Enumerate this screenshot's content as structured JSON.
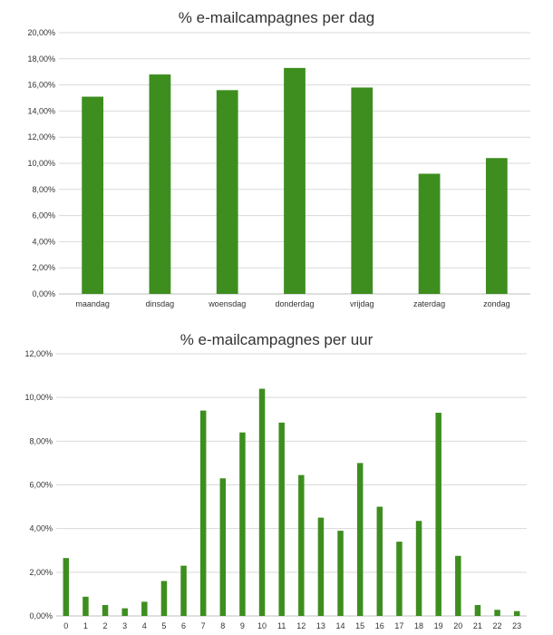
{
  "chart_data": [
    {
      "type": "bar",
      "title": "% e-mailcampagnes per dag",
      "xlabel": "",
      "ylabel": "",
      "categories": [
        "maandag",
        "dinsdag",
        "woensdag",
        "donderdag",
        "vrijdag",
        "zaterdag",
        "zondag"
      ],
      "values": [
        15.1,
        16.8,
        15.6,
        17.3,
        15.8,
        9.2,
        10.4
      ],
      "ylim": [
        0,
        20
      ],
      "yticks": [
        "0,00%",
        "2,00%",
        "4,00%",
        "6,00%",
        "8,00%",
        "10,00%",
        "12,00%",
        "14,00%",
        "16,00%",
        "18,00%",
        "20,00%"
      ],
      "grid": true,
      "legend": "none",
      "bar_color": "#3e8e1f"
    },
    {
      "type": "bar",
      "title": "% e-mailcampagnes per uur",
      "xlabel": "",
      "ylabel": "",
      "categories": [
        "0",
        "1",
        "2",
        "3",
        "4",
        "5",
        "6",
        "7",
        "8",
        "9",
        "10",
        "11",
        "12",
        "13",
        "14",
        "15",
        "16",
        "17",
        "18",
        "19",
        "20",
        "21",
        "22",
        "23"
      ],
      "values": [
        2.65,
        0.88,
        0.5,
        0.35,
        0.65,
        1.6,
        2.3,
        9.4,
        6.3,
        8.4,
        10.4,
        8.85,
        6.45,
        4.5,
        3.9,
        7.0,
        5.0,
        3.4,
        4.35,
        9.3,
        2.75,
        0.5,
        0.28,
        0.22
      ],
      "ylim": [
        0,
        12
      ],
      "yticks": [
        "0,00%",
        "2,00%",
        "4,00%",
        "6,00%",
        "8,00%",
        "10,00%",
        "12,00%"
      ],
      "grid": true,
      "legend": "none",
      "bar_color": "#3e8e1f"
    }
  ]
}
